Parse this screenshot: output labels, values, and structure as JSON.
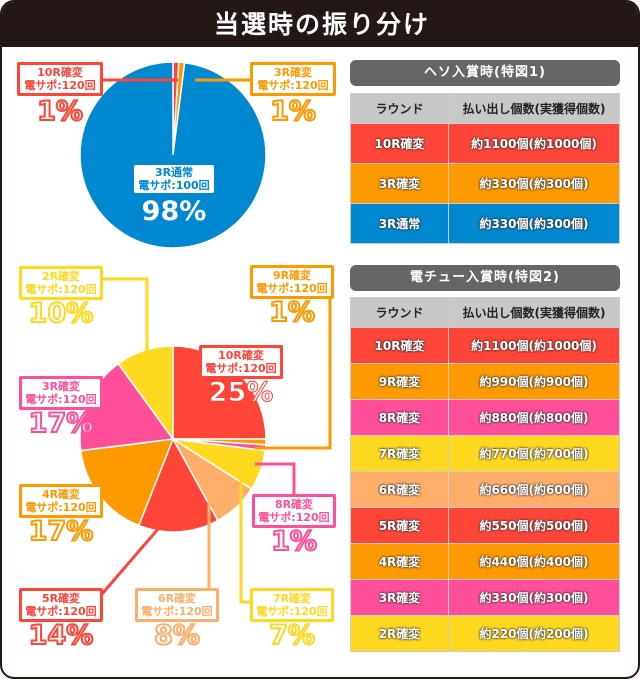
{
  "title": "当選時の振り分け",
  "colors": {
    "red": "#ff4438",
    "orange": "#ff9900",
    "blue": "#0088d0",
    "pink": "#ff4f9a",
    "yellow": "#ffd820",
    "lightorange": "#ffae6a"
  },
  "chart_data": [
    {
      "type": "pie",
      "slices": [
        {
          "label": "10R確変",
          "sub": "電サポ:120回",
          "pct_text": "1%",
          "value": 1,
          "color": "#ff4438"
        },
        {
          "label": "3R確変",
          "sub": "電サポ:120回",
          "pct_text": "1%",
          "value": 1,
          "color": "#ff9900"
        },
        {
          "label": "3R通常",
          "sub": "電サポ:100回",
          "pct_text": "98%",
          "value": 98,
          "color": "#0088d0"
        }
      ]
    },
    {
      "type": "pie",
      "slices": [
        {
          "label": "10R確変",
          "sub": "電サポ:120回",
          "pct_text": "25%",
          "value": 25,
          "color": "#ff4438"
        },
        {
          "label": "9R確変",
          "sub": "電サポ:120回",
          "pct_text": "1%",
          "value": 1,
          "color": "#ff9900"
        },
        {
          "label": "8R確変",
          "sub": "電サポ:120回",
          "pct_text": "1%",
          "value": 1,
          "color": "#ff4f9a"
        },
        {
          "label": "7R確変",
          "sub": "電サポ:120回",
          "pct_text": "7%",
          "value": 7,
          "color": "#ffd820"
        },
        {
          "label": "6R確変",
          "sub": "電サポ:120回",
          "pct_text": "8%",
          "value": 8,
          "color": "#ffae6a"
        },
        {
          "label": "5R確変",
          "sub": "電サポ:120回",
          "pct_text": "14%",
          "value": 14,
          "color": "#ff4438"
        },
        {
          "label": "4R確変",
          "sub": "電サポ:120回",
          "pct_text": "17%",
          "value": 17,
          "color": "#ff9900"
        },
        {
          "label": "3R確変",
          "sub": "電サポ:120回",
          "pct_text": "17%",
          "value": 17,
          "color": "#ff4f9a"
        },
        {
          "label": "2R確変",
          "sub": "電サポ:120回",
          "pct_text": "10%",
          "value": 10,
          "color": "#ffd820"
        }
      ]
    }
  ],
  "tables": [
    {
      "title": "ヘソ入賞時(特図1)",
      "headers": [
        "ラウンド",
        "払い出し個数(実獲得個数)"
      ],
      "rows": [
        [
          "10R確変",
          "約1100個(約1000個)",
          "#ff4438"
        ],
        [
          "3R確変",
          "約330個(約300個)",
          "#ff9900"
        ],
        [
          "3R通常",
          "約330個(約300個)",
          "#0088d0"
        ]
      ]
    },
    {
      "title": "電チュー入賞時(特図2)",
      "headers": [
        "ラウンド",
        "払い出し個数(実獲得個数)"
      ],
      "rows": [
        [
          "10R確変",
          "約1100個(約1000個)",
          "#ff4438"
        ],
        [
          "9R確変",
          "約990個(約900個)",
          "#ff9900"
        ],
        [
          "8R確変",
          "約880個(約800個)",
          "#ff4f9a"
        ],
        [
          "7R確変",
          "約770個(約700個)",
          "#ffd820"
        ],
        [
          "6R確変",
          "約660個(約600個)",
          "#ffae6a"
        ],
        [
          "5R確変",
          "約550個(約500個)",
          "#ff4438"
        ],
        [
          "4R確変",
          "約440個(約400個)",
          "#ff9900"
        ],
        [
          "3R確変",
          "約330個(約300個)",
          "#ff4f9a"
        ],
        [
          "2R確変",
          "約220個(約200個)",
          "#ffd820"
        ]
      ]
    }
  ]
}
